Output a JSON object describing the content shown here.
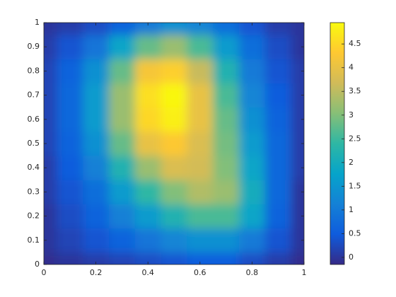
{
  "chart_data": {
    "type": "heatmap",
    "x": [
      0,
      0.1,
      0.2,
      0.3,
      0.4,
      0.5,
      0.6,
      0.7,
      0.8,
      0.9,
      1
    ],
    "y": [
      0,
      0.1,
      0.2,
      0.3,
      0.4,
      0.5,
      0.6,
      0.7,
      0.8,
      0.9,
      1
    ],
    "values": [
      [
        -0.1,
        0,
        0.1,
        0.2,
        0.3,
        0.4,
        0.5,
        0.5,
        0.3,
        0.1,
        -0.1
      ],
      [
        0,
        0.2,
        0.4,
        0.6,
        0.9,
        1.2,
        1.4,
        1.4,
        1.0,
        0.4,
        0
      ],
      [
        0,
        0.3,
        0.6,
        1.1,
        1.6,
        2.2,
        2.6,
        2.6,
        1.8,
        0.6,
        0
      ],
      [
        0.1,
        0.4,
        0.8,
        1.6,
        2.4,
        3.0,
        3.4,
        3.2,
        2.0,
        0.7,
        0
      ],
      [
        0.1,
        0.5,
        1.1,
        2.2,
        3.2,
        3.8,
        3.7,
        3.0,
        1.8,
        0.7,
        0.1
      ],
      [
        0.2,
        0.6,
        1.4,
        2.8,
        4.0,
        4.3,
        3.8,
        2.9,
        1.6,
        0.7,
        0.1
      ],
      [
        0.2,
        0.7,
        1.6,
        3.2,
        4.5,
        4.8,
        4.0,
        2.8,
        1.4,
        0.6,
        0.1
      ],
      [
        0.2,
        0.7,
        1.6,
        3.2,
        4.6,
        4.9,
        4.0,
        2.6,
        1.2,
        0.5,
        0.1
      ],
      [
        0.2,
        0.6,
        1.4,
        2.8,
        4.2,
        4.4,
        3.6,
        2.2,
        1.0,
        0.4,
        0.1
      ],
      [
        0.1,
        0.4,
        0.9,
        1.8,
        2.8,
        3.2,
        2.6,
        1.6,
        0.8,
        0.3,
        0
      ],
      [
        0,
        0.1,
        0.3,
        0.6,
        1.0,
        1.4,
        1.2,
        0.8,
        0.4,
        0.1,
        0
      ]
    ],
    "xlim": [
      0,
      1
    ],
    "xticks": [
      0,
      0.2,
      0.4,
      0.6,
      0.8,
      1
    ],
    "ylim": [
      0,
      1
    ],
    "yticks": [
      0,
      0.1,
      0.2,
      0.3,
      0.4,
      0.5,
      0.6,
      0.7,
      0.8,
      0.9,
      1
    ],
    "clim": [
      -0.15,
      4.95
    ],
    "cticks": [
      0,
      0.5,
      1,
      1.5,
      2,
      2.5,
      3,
      3.5,
      4,
      4.5
    ],
    "colormap": [
      "#352a87",
      "#0f5cdd",
      "#1481d6",
      "#06a4ca",
      "#2eb7a4",
      "#87bf77",
      "#d1bb59",
      "#fec832",
      "#f9fb0e"
    ]
  }
}
